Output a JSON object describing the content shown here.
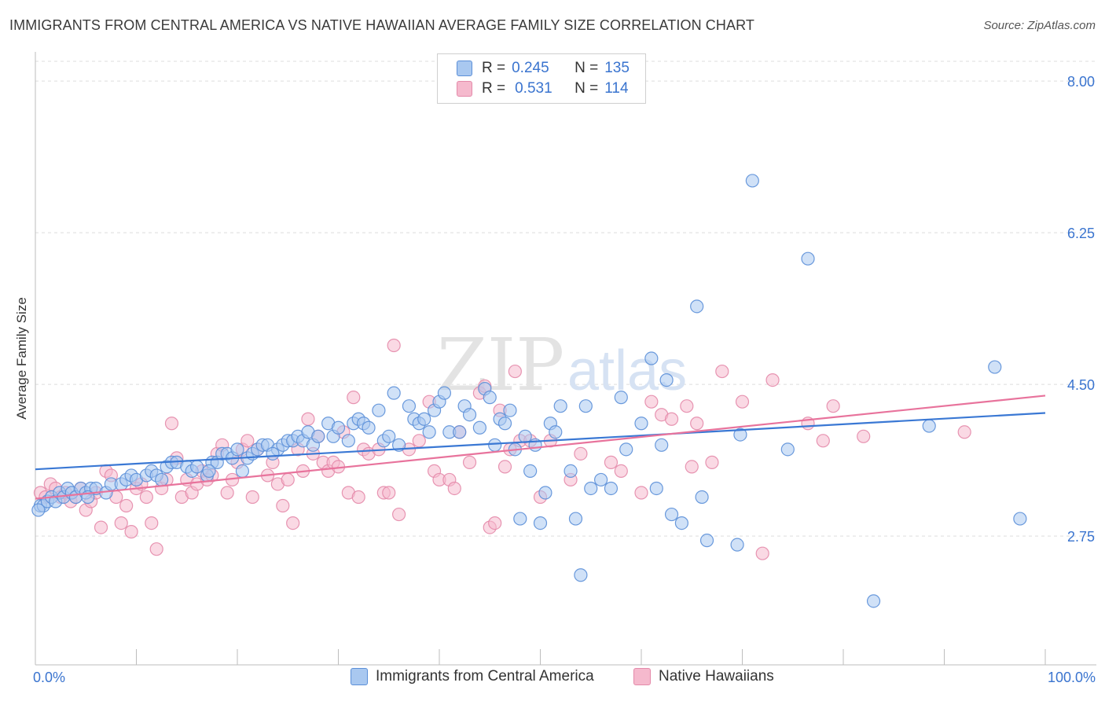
{
  "header": {
    "title": "IMMIGRANTS FROM CENTRAL AMERICA VS NATIVE HAWAIIAN AVERAGE FAMILY SIZE CORRELATION CHART",
    "source": "Source: ZipAtlas.com"
  },
  "watermark": {
    "zip": "ZIP",
    "atlas": "atlas"
  },
  "stats": {
    "r_label": "R =",
    "n_label": "N =",
    "rows": [
      {
        "r": "0.245",
        "n": "135"
      },
      {
        "r": "0.531",
        "n": "114"
      }
    ]
  },
  "legend": {
    "blue_label": "Immigrants from Central America",
    "pink_label": "Native Hawaiians"
  },
  "colors": {
    "blue_fill": "#a9c8f0",
    "blue_stroke": "#5b8fd8",
    "blue_line": "#3a78d4",
    "pink_fill": "#f5b9cd",
    "pink_stroke": "#e48aaa",
    "pink_line": "#e8739c",
    "axis_label": "#3a74cf",
    "grid": "#dedede"
  },
  "chart_data": {
    "type": "scatter",
    "title": "IMMIGRANTS FROM CENTRAL AMERICA VS NATIVE HAWAIIAN AVERAGE FAMILY SIZE CORRELATION CHART",
    "ylabel": "Average Family Size",
    "xlim": [
      0,
      100
    ],
    "ylim": [
      1.5,
      8.3
    ],
    "x_tick_labels": [
      "0.0%",
      "100.0%"
    ],
    "y_ticks": [
      2.75,
      4.5,
      6.25,
      8.0
    ],
    "y_tick_labels": [
      "2.75",
      "4.50",
      "6.25",
      "8.00"
    ],
    "grid": "horizontal dashed",
    "legend_position": "bottom",
    "series": [
      {
        "name": "Immigrants from Central America",
        "color": "#5b8fd8",
        "r": 0.245,
        "n": 135,
        "trend": {
          "x": [
            0,
            100
          ],
          "y": [
            3.52,
            4.17
          ]
        },
        "points": [
          [
            0.5,
            3.1
          ],
          [
            0.8,
            3.1
          ],
          [
            1.2,
            3.15
          ],
          [
            1.6,
            3.2
          ],
          [
            2.0,
            3.15
          ],
          [
            2.4,
            3.25
          ],
          [
            2.8,
            3.2
          ],
          [
            3.2,
            3.3
          ],
          [
            3.6,
            3.25
          ],
          [
            4.0,
            3.2
          ],
          [
            4.5,
            3.3
          ],
          [
            5.0,
            3.25
          ],
          [
            5.5,
            3.3
          ],
          [
            6.0,
            3.3
          ],
          [
            7.0,
            3.25
          ],
          [
            7.5,
            3.35
          ],
          [
            8.5,
            3.35
          ],
          [
            9.0,
            3.4
          ],
          [
            9.5,
            3.45
          ],
          [
            10.0,
            3.4
          ],
          [
            11.0,
            3.45
          ],
          [
            11.5,
            3.5
          ],
          [
            12.0,
            3.45
          ],
          [
            13.0,
            3.55
          ],
          [
            13.5,
            3.6
          ],
          [
            14.0,
            3.6
          ],
          [
            15.0,
            3.55
          ],
          [
            15.5,
            3.5
          ],
          [
            16.0,
            3.55
          ],
          [
            17.0,
            3.45
          ],
          [
            17.5,
            3.6
          ],
          [
            18.0,
            3.6
          ],
          [
            18.5,
            3.7
          ],
          [
            19.0,
            3.7
          ],
          [
            19.5,
            3.65
          ],
          [
            20.0,
            3.75
          ],
          [
            20.5,
            3.5
          ],
          [
            21.0,
            3.65
          ],
          [
            21.5,
            3.7
          ],
          [
            22.0,
            3.75
          ],
          [
            22.5,
            3.8
          ],
          [
            23.0,
            3.8
          ],
          [
            24.0,
            3.75
          ],
          [
            24.5,
            3.8
          ],
          [
            25.0,
            3.85
          ],
          [
            25.5,
            3.85
          ],
          [
            26.0,
            3.9
          ],
          [
            26.5,
            3.85
          ],
          [
            27.0,
            3.95
          ],
          [
            27.5,
            3.8
          ],
          [
            28.0,
            3.9
          ],
          [
            29.0,
            4.05
          ],
          [
            29.5,
            3.9
          ],
          [
            30.0,
            4.0
          ],
          [
            31.0,
            3.85
          ],
          [
            31.5,
            4.05
          ],
          [
            32.0,
            4.1
          ],
          [
            32.5,
            4.05
          ],
          [
            33.0,
            4.0
          ],
          [
            34.0,
            4.2
          ],
          [
            34.5,
            3.85
          ],
          [
            35.0,
            3.9
          ],
          [
            35.5,
            4.4
          ],
          [
            36.0,
            3.8
          ],
          [
            37.0,
            4.25
          ],
          [
            37.5,
            4.1
          ],
          [
            38.0,
            4.05
          ],
          [
            38.5,
            4.1
          ],
          [
            39.0,
            3.95
          ],
          [
            39.5,
            4.2
          ],
          [
            40.0,
            4.3
          ],
          [
            40.5,
            4.4
          ],
          [
            41.0,
            3.95
          ],
          [
            42.0,
            3.95
          ],
          [
            42.5,
            4.25
          ],
          [
            43.0,
            4.15
          ],
          [
            44.0,
            4.0
          ],
          [
            44.5,
            4.45
          ],
          [
            45.0,
            4.35
          ],
          [
            45.5,
            3.8
          ],
          [
            46.0,
            4.1
          ],
          [
            46.5,
            4.05
          ],
          [
            47.0,
            4.2
          ],
          [
            47.5,
            3.75
          ],
          [
            48.0,
            2.95
          ],
          [
            48.5,
            3.9
          ],
          [
            49.0,
            3.5
          ],
          [
            49.5,
            3.8
          ],
          [
            50.0,
            2.9
          ],
          [
            50.5,
            3.25
          ],
          [
            51.0,
            4.05
          ],
          [
            51.5,
            3.95
          ],
          [
            52.0,
            4.25
          ],
          [
            53.0,
            3.5
          ],
          [
            53.5,
            2.95
          ],
          [
            54.0,
            2.3
          ],
          [
            54.5,
            4.25
          ],
          [
            55.0,
            3.3
          ],
          [
            56.0,
            3.4
          ],
          [
            57.0,
            3.3
          ],
          [
            58.0,
            4.35
          ],
          [
            58.5,
            3.75
          ],
          [
            60.0,
            4.05
          ],
          [
            61.0,
            4.8
          ],
          [
            61.5,
            3.3
          ],
          [
            62.0,
            3.8
          ],
          [
            62.5,
            4.55
          ],
          [
            63.0,
            3.0
          ],
          [
            64.0,
            2.9
          ],
          [
            65.5,
            5.4
          ],
          [
            66.0,
            3.2
          ],
          [
            66.5,
            2.7
          ],
          [
            69.5,
            2.65
          ],
          [
            69.8,
            3.92
          ],
          [
            71.0,
            6.85
          ],
          [
            74.5,
            3.75
          ],
          [
            76.5,
            5.95
          ],
          [
            83.0,
            2.0
          ],
          [
            88.5,
            4.02
          ],
          [
            95.0,
            4.7
          ],
          [
            97.5,
            2.95
          ],
          [
            0.3,
            3.05
          ],
          [
            5.2,
            3.2
          ],
          [
            12.5,
            3.4
          ],
          [
            17.2,
            3.5
          ],
          [
            23.5,
            3.7
          ]
        ]
      },
      {
        "name": "Native Hawaiians",
        "color": "#e48aaa",
        "r": 0.531,
        "n": 114,
        "trend": {
          "x": [
            0,
            100
          ],
          "y": [
            3.18,
            4.37
          ]
        },
        "points": [
          [
            0.5,
            3.25
          ],
          [
            1.0,
            3.2
          ],
          [
            1.5,
            3.35
          ],
          [
            2.0,
            3.3
          ],
          [
            2.5,
            3.2
          ],
          [
            3.0,
            3.25
          ],
          [
            3.5,
            3.15
          ],
          [
            4.0,
            3.2
          ],
          [
            4.5,
            3.3
          ],
          [
            5.0,
            3.05
          ],
          [
            5.5,
            3.15
          ],
          [
            6.0,
            3.25
          ],
          [
            6.5,
            2.85
          ],
          [
            7.0,
            3.5
          ],
          [
            7.5,
            3.45
          ],
          [
            8.0,
            3.2
          ],
          [
            8.5,
            2.9
          ],
          [
            9.0,
            3.1
          ],
          [
            9.5,
            2.8
          ],
          [
            10.0,
            3.3
          ],
          [
            10.5,
            3.35
          ],
          [
            11.0,
            3.2
          ],
          [
            11.5,
            2.9
          ],
          [
            12.0,
            2.6
          ],
          [
            12.5,
            3.3
          ],
          [
            13.0,
            3.4
          ],
          [
            13.5,
            4.05
          ],
          [
            14.0,
            3.65
          ],
          [
            14.5,
            3.2
          ],
          [
            15.0,
            3.4
          ],
          [
            15.5,
            3.25
          ],
          [
            16.0,
            3.35
          ],
          [
            16.5,
            3.5
          ],
          [
            17.0,
            3.4
          ],
          [
            17.5,
            3.45
          ],
          [
            18.0,
            3.7
          ],
          [
            18.5,
            3.8
          ],
          [
            19.0,
            3.25
          ],
          [
            19.5,
            3.4
          ],
          [
            20.0,
            3.6
          ],
          [
            20.5,
            3.75
          ],
          [
            21.0,
            3.85
          ],
          [
            21.5,
            3.2
          ],
          [
            22.0,
            3.75
          ],
          [
            23.0,
            3.45
          ],
          [
            23.5,
            3.6
          ],
          [
            24.0,
            3.35
          ],
          [
            24.5,
            3.1
          ],
          [
            25.0,
            3.4
          ],
          [
            25.5,
            2.9
          ],
          [
            26.0,
            3.75
          ],
          [
            26.5,
            3.5
          ],
          [
            27.0,
            4.1
          ],
          [
            27.5,
            3.7
          ],
          [
            28.0,
            3.9
          ],
          [
            28.5,
            3.6
          ],
          [
            29.0,
            3.5
          ],
          [
            29.5,
            3.6
          ],
          [
            30.0,
            3.55
          ],
          [
            30.5,
            3.95
          ],
          [
            31.0,
            3.25
          ],
          [
            31.5,
            4.35
          ],
          [
            32.0,
            3.2
          ],
          [
            32.5,
            3.75
          ],
          [
            33.0,
            3.7
          ],
          [
            34.0,
            3.75
          ],
          [
            34.5,
            3.25
          ],
          [
            35.0,
            3.25
          ],
          [
            35.5,
            4.95
          ],
          [
            36.0,
            3.0
          ],
          [
            37.0,
            3.75
          ],
          [
            38.0,
            3.85
          ],
          [
            39.0,
            4.3
          ],
          [
            39.5,
            3.5
          ],
          [
            40.0,
            3.4
          ],
          [
            41.0,
            3.4
          ],
          [
            41.5,
            3.3
          ],
          [
            42.0,
            3.95
          ],
          [
            43.0,
            3.6
          ],
          [
            44.0,
            4.4
          ],
          [
            44.5,
            4.48
          ],
          [
            45.0,
            2.85
          ],
          [
            45.5,
            2.9
          ],
          [
            46.0,
            4.2
          ],
          [
            46.5,
            3.55
          ],
          [
            47.0,
            3.75
          ],
          [
            47.5,
            4.65
          ],
          [
            48.0,
            3.85
          ],
          [
            49.0,
            3.85
          ],
          [
            50.0,
            3.2
          ],
          [
            51.0,
            3.85
          ],
          [
            53.0,
            3.4
          ],
          [
            54.0,
            3.7
          ],
          [
            57.0,
            3.6
          ],
          [
            58.0,
            3.5
          ],
          [
            60.0,
            3.25
          ],
          [
            61.0,
            4.3
          ],
          [
            62.0,
            4.15
          ],
          [
            63.0,
            4.1
          ],
          [
            64.5,
            4.25
          ],
          [
            65.0,
            3.55
          ],
          [
            65.5,
            4.05
          ],
          [
            67.0,
            3.6
          ],
          [
            68.0,
            4.65
          ],
          [
            70.0,
            4.3
          ],
          [
            72.0,
            2.55
          ],
          [
            73.0,
            4.55
          ],
          [
            76.5,
            4.05
          ],
          [
            78.0,
            3.85
          ],
          [
            79.0,
            4.25
          ],
          [
            82.0,
            3.9
          ],
          [
            92.0,
            3.95
          ]
        ]
      }
    ]
  }
}
